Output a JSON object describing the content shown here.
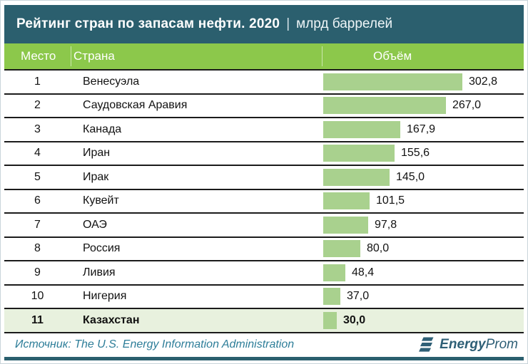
{
  "title": {
    "main": "Рейтинг стран по запасам нефти. 2020",
    "separator": "|",
    "unit": "млрд баррелей"
  },
  "columns": {
    "rank": "Место",
    "country": "Страна",
    "volume": "Объём"
  },
  "chart_data": {
    "type": "bar",
    "orientation": "horizontal",
    "title": "Рейтинг стран по запасам нефти. 2020",
    "unit": "млрд баррелей",
    "xlim": [
      0,
      302.8
    ],
    "highlighted_category": "Казахстан",
    "rows": [
      {
        "rank": "1",
        "country": "Венесуэла",
        "value": 302.8,
        "label": "302,8",
        "highlight": false
      },
      {
        "rank": "2",
        "country": "Саудовская Аравия",
        "value": 267.0,
        "label": "267,0",
        "highlight": false
      },
      {
        "rank": "3",
        "country": "Канада",
        "value": 167.9,
        "label": "167,9",
        "highlight": false
      },
      {
        "rank": "4",
        "country": "Иран",
        "value": 155.6,
        "label": "155,6",
        "highlight": false
      },
      {
        "rank": "5",
        "country": "Ирак",
        "value": 145.0,
        "label": "145,0",
        "highlight": false
      },
      {
        "rank": "6",
        "country": "Кувейт",
        "value": 101.5,
        "label": "101,5",
        "highlight": false
      },
      {
        "rank": "7",
        "country": "ОАЭ",
        "value": 97.8,
        "label": "97,8",
        "highlight": false
      },
      {
        "rank": "8",
        "country": "Россия",
        "value": 80.0,
        "label": "80,0",
        "highlight": false
      },
      {
        "rank": "9",
        "country": "Ливия",
        "value": 48.4,
        "label": "48,4",
        "highlight": false
      },
      {
        "rank": "10",
        "country": "Нигерия",
        "value": 37.0,
        "label": "37,0",
        "highlight": false
      },
      {
        "rank": "11",
        "country": "Казахстан",
        "value": 30.0,
        "label": "30,0",
        "highlight": true
      }
    ]
  },
  "footer": {
    "source": "Источник: The U.S. Energy Information Administration",
    "logo": {
      "bold": "Energy",
      "regular": "Prom"
    }
  },
  "colors": {
    "title_bar": "#2B5F6E",
    "header_green": "#8CC84B",
    "bar_fill": "#A9D18E",
    "highlight_row": "#E8F1DE",
    "row_border": "#1B1B1B",
    "source_text": "#2E7E99",
    "logo": "#2E5F76"
  }
}
